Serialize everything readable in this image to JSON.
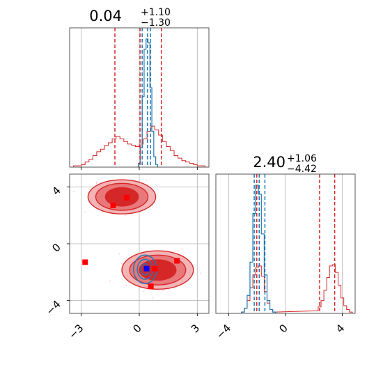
{
  "colors": {
    "red": "#d62728",
    "blue": "#1f77b4",
    "grid": "#b0b0b0",
    "frame": "#444444",
    "red_fill_inner": "#d62728",
    "red_fill_mid": "#e8787a",
    "red_fill_outer": "#f4b4b6",
    "marker_red": "#ff0000",
    "marker_blue": "#0000ff"
  },
  "chart_data": [
    {
      "type": "histogram",
      "panel": "marginal-1",
      "title": "0.04",
      "title_plus": "+1.10",
      "title_minus": "−1.30",
      "xlim": [
        -3.6,
        3.6
      ],
      "grid": true,
      "xticks": [
        -3,
        0,
        3
      ],
      "red_hist": {
        "bin_centers": [
          -3.5,
          -3.3,
          -3.1,
          -2.9,
          -2.7,
          -2.5,
          -2.3,
          -2.1,
          -1.9,
          -1.7,
          -1.5,
          -1.3,
          -1.1,
          -0.9,
          -0.7,
          -0.5,
          -0.3,
          -0.1,
          0.1,
          0.3,
          0.5,
          0.7,
          0.9,
          1.1,
          1.3,
          1.5,
          1.7,
          1.9,
          2.1,
          2.3,
          2.5,
          2.7,
          2.9,
          3.1,
          3.3,
          3.5
        ],
        "counts": [
          0.0,
          0.01,
          0.01,
          0.02,
          0.04,
          0.06,
          0.09,
          0.12,
          0.14,
          0.17,
          0.19,
          0.22,
          0.24,
          0.22,
          0.2,
          0.18,
          0.17,
          0.16,
          0.18,
          0.22,
          0.28,
          0.32,
          0.29,
          0.25,
          0.2,
          0.16,
          0.13,
          0.09,
          0.07,
          0.05,
          0.04,
          0.03,
          0.02,
          0.01,
          0.01,
          0.0
        ]
      },
      "blue_hist": {
        "bin_centers": [
          -0.1,
          0.0,
          0.1,
          0.2,
          0.3,
          0.4,
          0.5,
          0.6,
          0.7,
          0.8,
          0.9,
          1.0
        ],
        "counts": [
          0.0,
          0.03,
          0.15,
          0.55,
          0.92,
          1.0,
          0.97,
          0.62,
          0.28,
          0.08,
          0.02,
          0.0
        ]
      },
      "red_quantiles": [
        -1.26,
        0.04,
        1.14
      ],
      "blue_quantiles": [
        0.15,
        0.42,
        0.58
      ]
    },
    {
      "type": "scatter",
      "panel": "joint",
      "xlim": [
        -3.6,
        3.6
      ],
      "ylim": [
        -4.9,
        4.9
      ],
      "xticks": [
        -3,
        0,
        3
      ],
      "yticks": [
        -4,
        0,
        4
      ],
      "grid": true,
      "red_contours": {
        "modes": [
          {
            "center": [
              -0.9,
              3.3
            ],
            "levels": [
              [
                1.75,
                1.2
              ],
              [
                1.35,
                0.95
              ],
              [
                0.85,
                0.65
              ]
            ]
          },
          {
            "center": [
              0.95,
              -1.85
            ],
            "levels": [
              [
                1.85,
                1.35
              ],
              [
                1.45,
                1.05
              ],
              [
                0.95,
                0.72
              ]
            ]
          }
        ]
      },
      "blue_contours": {
        "center": [
          0.3,
          -1.8
        ],
        "levels": [
          [
            0.6,
            1.0
          ],
          [
            0.4,
            0.7
          ],
          [
            0.2,
            0.4
          ]
        ]
      },
      "red_markers": [
        [
          -1.35,
          2.7
        ],
        [
          -0.65,
          3.25
        ],
        [
          -2.8,
          -1.3
        ],
        [
          0.6,
          -3.0
        ],
        [
          0.8,
          -1.75
        ],
        [
          1.95,
          -1.2
        ]
      ],
      "blue_markers": [
        [
          0.38,
          -1.75
        ]
      ]
    },
    {
      "type": "histogram",
      "panel": "marginal-2",
      "title": "2.40",
      "title_plus": "+1.06",
      "title_minus": "−4.42",
      "xlim": [
        -4.9,
        4.9
      ],
      "grid": true,
      "xticks": [
        -4,
        0,
        4
      ],
      "red_hist": {
        "bin_centers": [
          -3.0,
          -2.8,
          -2.6,
          -2.4,
          -2.2,
          -2.0,
          -1.8,
          -1.6,
          -1.4,
          -1.2,
          -1.0,
          -0.8,
          2.2,
          2.4,
          2.6,
          2.8,
          3.0,
          3.2,
          3.4,
          3.6,
          3.8,
          4.0,
          4.2,
          4.4,
          4.6
        ],
        "counts": [
          0.01,
          0.04,
          0.1,
          0.2,
          0.3,
          0.36,
          0.37,
          0.29,
          0.17,
          0.08,
          0.03,
          0.01,
          0.02,
          0.05,
          0.1,
          0.18,
          0.28,
          0.37,
          0.38,
          0.32,
          0.22,
          0.12,
          0.06,
          0.03,
          0.01
        ]
      },
      "blue_hist": {
        "bin_centers": [
          -3.0,
          -2.8,
          -2.6,
          -2.4,
          -2.2,
          -2.0,
          -1.8,
          -1.6,
          -1.4,
          -1.2,
          -1.0,
          -0.8
        ],
        "counts": [
          0.01,
          0.04,
          0.14,
          0.4,
          0.78,
          1.0,
          0.93,
          0.62,
          0.3,
          0.1,
          0.03,
          0.01
        ]
      },
      "red_quantiles": [
        -2.02,
        2.4,
        3.46
      ],
      "blue_quantiles": [
        -2.2,
        -1.85,
        -1.45
      ]
    }
  ]
}
